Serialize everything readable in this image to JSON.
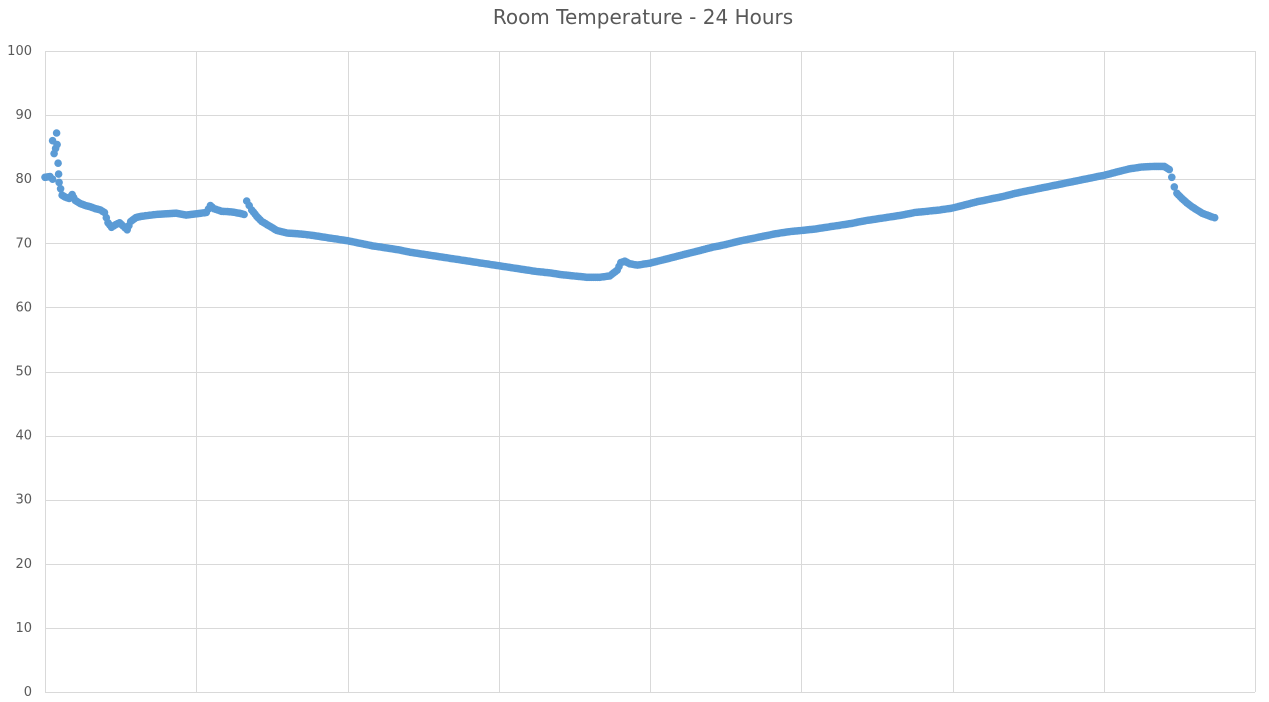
{
  "chart_data": {
    "type": "scatter",
    "title": "Room Temperature - 24 Hours",
    "xlabel": "",
    "ylabel": "",
    "xlim": [
      0,
      24
    ],
    "ylim": [
      0,
      100
    ],
    "y_ticks": [
      "0",
      "10",
      "20",
      "30",
      "40",
      "50",
      "60",
      "70",
      "80",
      "90",
      "100"
    ],
    "x_gridlines": 8,
    "grid": true,
    "legend": "none",
    "series_color": "#5b9bd5",
    "grid_color": "#d9d9d9",
    "series": [
      {
        "points": [
          [
            0.0,
            80.3
          ],
          [
            0.1,
            80.4
          ],
          [
            0.15,
            80.0
          ],
          [
            0.15,
            86.0
          ],
          [
            0.18,
            84.0
          ],
          [
            0.21,
            84.8
          ],
          [
            0.23,
            87.2
          ],
          [
            0.24,
            85.4
          ],
          [
            0.26,
            82.5
          ],
          [
            0.27,
            80.8
          ],
          [
            0.28,
            79.5
          ],
          [
            0.31,
            78.5
          ],
          [
            0.34,
            77.5
          ],
          [
            0.4,
            77.2
          ],
          [
            0.48,
            77.0
          ],
          [
            0.54,
            77.6
          ],
          [
            0.6,
            76.7
          ],
          [
            0.7,
            76.2
          ],
          [
            0.8,
            75.9
          ],
          [
            0.9,
            75.7
          ],
          [
            1.0,
            75.4
          ],
          [
            1.1,
            75.2
          ],
          [
            1.18,
            74.8
          ],
          [
            1.25,
            73.2
          ],
          [
            1.32,
            72.5
          ],
          [
            1.4,
            72.9
          ],
          [
            1.48,
            73.2
          ],
          [
            1.55,
            72.7
          ],
          [
            1.63,
            72.1
          ],
          [
            1.7,
            73.4
          ],
          [
            1.8,
            74.0
          ],
          [
            1.9,
            74.2
          ],
          [
            2.0,
            74.3
          ],
          [
            2.2,
            74.5
          ],
          [
            2.4,
            74.6
          ],
          [
            2.6,
            74.7
          ],
          [
            2.8,
            74.4
          ],
          [
            3.0,
            74.6
          ],
          [
            3.2,
            74.8
          ],
          [
            3.28,
            75.9
          ],
          [
            3.35,
            75.4
          ],
          [
            3.5,
            75.0
          ],
          [
            3.7,
            74.9
          ],
          [
            3.85,
            74.7
          ],
          [
            3.95,
            74.5
          ],
          [
            4.0,
            76.6
          ],
          [
            4.05,
            75.9
          ],
          [
            4.1,
            75.2
          ],
          [
            4.2,
            74.2
          ],
          [
            4.3,
            73.4
          ],
          [
            4.45,
            72.7
          ],
          [
            4.6,
            72.0
          ],
          [
            4.8,
            71.6
          ],
          [
            5.0,
            71.5
          ],
          [
            5.25,
            71.3
          ],
          [
            5.5,
            71.0
          ],
          [
            5.75,
            70.7
          ],
          [
            6.0,
            70.4
          ],
          [
            6.25,
            70.0
          ],
          [
            6.5,
            69.6
          ],
          [
            6.75,
            69.3
          ],
          [
            7.0,
            69.0
          ],
          [
            7.25,
            68.6
          ],
          [
            7.5,
            68.3
          ],
          [
            7.75,
            68.0
          ],
          [
            8.0,
            67.7
          ],
          [
            8.25,
            67.4
          ],
          [
            8.5,
            67.1
          ],
          [
            8.75,
            66.8
          ],
          [
            9.0,
            66.5
          ],
          [
            9.25,
            66.2
          ],
          [
            9.5,
            65.9
          ],
          [
            9.75,
            65.6
          ],
          [
            10.0,
            65.4
          ],
          [
            10.25,
            65.1
          ],
          [
            10.5,
            64.9
          ],
          [
            10.75,
            64.7
          ],
          [
            11.0,
            64.7
          ],
          [
            11.2,
            64.9
          ],
          [
            11.35,
            65.8
          ],
          [
            11.42,
            67.0
          ],
          [
            11.5,
            67.2
          ],
          [
            11.6,
            66.8
          ],
          [
            11.75,
            66.6
          ],
          [
            12.0,
            66.9
          ],
          [
            12.25,
            67.4
          ],
          [
            12.5,
            67.9
          ],
          [
            12.75,
            68.4
          ],
          [
            13.0,
            68.9
          ],
          [
            13.25,
            69.4
          ],
          [
            13.5,
            69.8
          ],
          [
            13.75,
            70.3
          ],
          [
            14.0,
            70.7
          ],
          [
            14.25,
            71.1
          ],
          [
            14.5,
            71.5
          ],
          [
            14.75,
            71.8
          ],
          [
            15.0,
            72.0
          ],
          [
            15.25,
            72.2
          ],
          [
            15.5,
            72.5
          ],
          [
            15.75,
            72.8
          ],
          [
            16.0,
            73.1
          ],
          [
            16.25,
            73.5
          ],
          [
            16.5,
            73.8
          ],
          [
            16.75,
            74.1
          ],
          [
            17.0,
            74.4
          ],
          [
            17.25,
            74.8
          ],
          [
            17.5,
            75.0
          ],
          [
            17.75,
            75.2
          ],
          [
            18.0,
            75.5
          ],
          [
            18.25,
            76.0
          ],
          [
            18.5,
            76.5
          ],
          [
            18.75,
            76.9
          ],
          [
            19.0,
            77.3
          ],
          [
            19.25,
            77.8
          ],
          [
            19.5,
            78.2
          ],
          [
            19.75,
            78.6
          ],
          [
            20.0,
            79.0
          ],
          [
            20.25,
            79.4
          ],
          [
            20.5,
            79.8
          ],
          [
            20.75,
            80.2
          ],
          [
            21.0,
            80.6
          ],
          [
            21.25,
            81.1
          ],
          [
            21.5,
            81.6
          ],
          [
            21.75,
            81.9
          ],
          [
            22.0,
            82.0
          ],
          [
            22.2,
            82.0
          ],
          [
            22.3,
            81.5
          ],
          [
            22.35,
            80.3
          ],
          [
            22.4,
            78.8
          ],
          [
            22.45,
            77.8
          ],
          [
            22.55,
            77.0
          ],
          [
            22.65,
            76.3
          ],
          [
            22.75,
            75.7
          ],
          [
            22.85,
            75.2
          ],
          [
            22.95,
            74.7
          ],
          [
            23.05,
            74.4
          ],
          [
            23.15,
            74.1
          ],
          [
            23.2,
            74.0
          ]
        ]
      }
    ]
  }
}
